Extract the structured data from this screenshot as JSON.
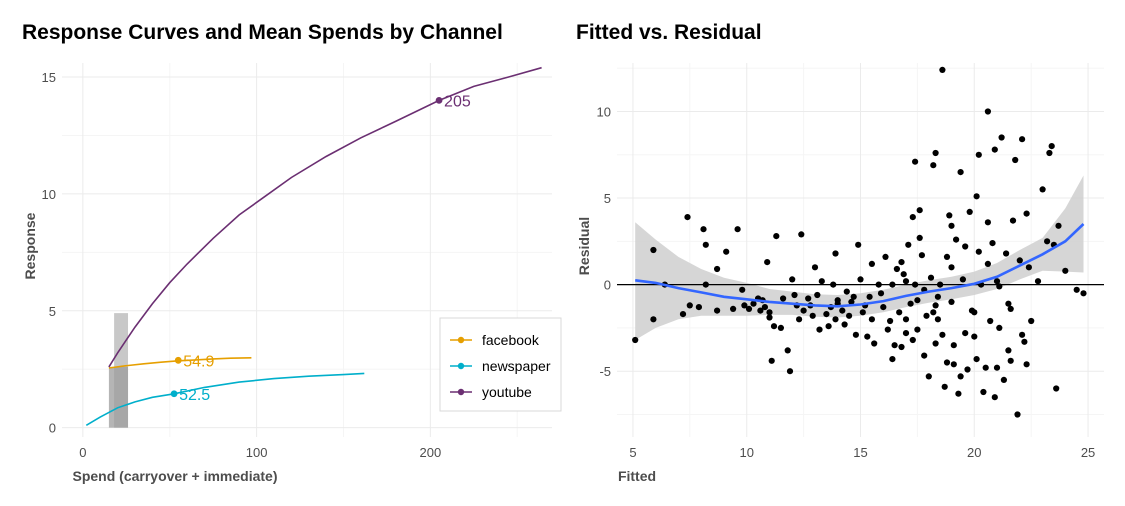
{
  "chart_data": [
    {
      "type": "line",
      "title": "Response Curves and Mean Spends by Channel",
      "xlabel": "Spend (carryover + immediate)",
      "ylabel": "Response",
      "xlim": [
        -12,
        270
      ],
      "ylim": [
        -0.4,
        15.6
      ],
      "xticks": [
        0,
        100,
        200
      ],
      "yticks": [
        0,
        5,
        10,
        15
      ],
      "grid": true,
      "legend": "right",
      "series": [
        {
          "name": "facebook",
          "color": "#E69F00",
          "curve": [
            [
              15,
              2.55
            ],
            [
              25,
              2.65
            ],
            [
              35,
              2.73
            ],
            [
              45,
              2.8
            ],
            [
              55,
              2.86
            ],
            [
              65,
              2.9
            ],
            [
              75,
              2.94
            ],
            [
              85,
              2.97
            ],
            [
              97,
              2.99
            ]
          ],
          "mean_spend": 54.9,
          "mean_response": 2.88,
          "label": "54.9",
          "band": [
            15,
            26
          ]
        },
        {
          "name": "newspaper",
          "color": "#00AFCB",
          "curve": [
            [
              2,
              0.1
            ],
            [
              10,
              0.45
            ],
            [
              20,
              0.85
            ],
            [
              30,
              1.1
            ],
            [
              40,
              1.3
            ],
            [
              52.5,
              1.45
            ],
            [
              70,
              1.72
            ],
            [
              90,
              1.95
            ],
            [
              110,
              2.1
            ],
            [
              130,
              2.2
            ],
            [
              150,
              2.27
            ],
            [
              162,
              2.32
            ]
          ],
          "mean_spend": 52.5,
          "mean_response": 1.45,
          "label": "52.5"
        },
        {
          "name": "youtube",
          "color": "#6B2F72",
          "curve": [
            [
              15,
              2.6
            ],
            [
              20,
              3.2
            ],
            [
              30,
              4.3
            ],
            [
              40,
              5.3
            ],
            [
              50,
              6.2
            ],
            [
              60,
              7.0
            ],
            [
              75,
              8.1
            ],
            [
              90,
              9.1
            ],
            [
              105,
              9.9
            ],
            [
              120,
              10.7
            ],
            [
              140,
              11.6
            ],
            [
              160,
              12.4
            ],
            [
              180,
              13.1
            ],
            [
              205,
              14.0
            ],
            [
              225,
              14.6
            ],
            [
              245,
              15.0
            ],
            [
              264,
              15.4
            ]
          ],
          "mean_spend": 205,
          "mean_response": 14.0,
          "label": "205"
        }
      ]
    },
    {
      "type": "scatter",
      "title": "Fitted vs. Residual",
      "xlabel": "Fitted",
      "ylabel": "Residual",
      "xlim": [
        4.3,
        25.7
      ],
      "ylim": [
        -8.8,
        12.8
      ],
      "xticks": [
        5,
        10,
        15,
        20,
        25
      ],
      "yticks": [
        -5,
        0,
        5,
        10
      ],
      "grid": true,
      "hline": 0,
      "smooth_color": "#3366FF",
      "smooth": [
        [
          5.1,
          0.25
        ],
        [
          6,
          0.1
        ],
        [
          7,
          -0.2
        ],
        [
          8,
          -0.45
        ],
        [
          9,
          -0.7
        ],
        [
          10,
          -0.85
        ],
        [
          11,
          -1.0
        ],
        [
          12,
          -1.1
        ],
        [
          13,
          -1.2
        ],
        [
          14,
          -1.25
        ],
        [
          15,
          -1.15
        ],
        [
          16,
          -0.95
        ],
        [
          17,
          -0.65
        ],
        [
          18,
          -0.4
        ],
        [
          19,
          -0.2
        ],
        [
          20,
          0.05
        ],
        [
          21,
          0.45
        ],
        [
          22,
          1.1
        ],
        [
          23,
          1.75
        ],
        [
          24,
          2.5
        ],
        [
          24.8,
          3.5
        ]
      ],
      "band_upper": [
        [
          5.1,
          3.6
        ],
        [
          6,
          2.6
        ],
        [
          7,
          1.6
        ],
        [
          8,
          0.9
        ],
        [
          9,
          0.4
        ],
        [
          10,
          0.1
        ],
        [
          11,
          -0.25
        ],
        [
          12,
          -0.4
        ],
        [
          13,
          -0.55
        ],
        [
          14,
          -0.6
        ],
        [
          15,
          -0.5
        ],
        [
          16,
          -0.3
        ],
        [
          17,
          0.0
        ],
        [
          18,
          0.25
        ],
        [
          19,
          0.45
        ],
        [
          20,
          0.75
        ],
        [
          21,
          1.25
        ],
        [
          22,
          2.0
        ],
        [
          23,
          2.7
        ],
        [
          24,
          4.4
        ],
        [
          24.8,
          6.3
        ]
      ],
      "band_lower": [
        [
          5.1,
          -3.2
        ],
        [
          6,
          -2.5
        ],
        [
          7,
          -2.0
        ],
        [
          8,
          -1.8
        ],
        [
          9,
          -1.8
        ],
        [
          10,
          -1.8
        ],
        [
          11,
          -1.75
        ],
        [
          12,
          -1.75
        ],
        [
          13,
          -1.85
        ],
        [
          14,
          -1.9
        ],
        [
          15,
          -1.8
        ],
        [
          16,
          -1.6
        ],
        [
          17,
          -1.3
        ],
        [
          18,
          -1.05
        ],
        [
          19,
          -0.85
        ],
        [
          20,
          -0.6
        ],
        [
          21,
          -0.25
        ],
        [
          22,
          0.3
        ],
        [
          23,
          0.8
        ],
        [
          24,
          0.75
        ],
        [
          24.8,
          0.7
        ]
      ],
      "points": [
        [
          5.1,
          -3.2
        ],
        [
          5.9,
          2.0
        ],
        [
          5.9,
          -2.0
        ],
        [
          6.4,
          0.0
        ],
        [
          7.2,
          -1.7
        ],
        [
          7.4,
          3.9
        ],
        [
          7.5,
          -1.2
        ],
        [
          7.9,
          -1.3
        ],
        [
          8.1,
          3.2
        ],
        [
          8.2,
          0.0
        ],
        [
          8.2,
          2.3
        ],
        [
          8.7,
          -1.5
        ],
        [
          8.7,
          0.9
        ],
        [
          9.1,
          1.9
        ],
        [
          9.4,
          -1.4
        ],
        [
          9.6,
          3.2
        ],
        [
          9.9,
          -1.2
        ],
        [
          10.1,
          -1.4
        ],
        [
          10.3,
          -1.1
        ],
        [
          10.5,
          -0.8
        ],
        [
          10.6,
          -1.5
        ],
        [
          10.8,
          -1.3
        ],
        [
          10.9,
          1.3
        ],
        [
          11.0,
          -1.6
        ],
        [
          11.1,
          -4.4
        ],
        [
          11.2,
          -2.4
        ],
        [
          11.3,
          2.8
        ],
        [
          11.5,
          -2.5
        ],
        [
          11.6,
          -0.8
        ],
        [
          11.8,
          -3.8
        ],
        [
          11.9,
          -5.0
        ],
        [
          12.0,
          0.3
        ],
        [
          12.1,
          -0.6
        ],
        [
          12.2,
          -1.2
        ],
        [
          12.4,
          2.9
        ],
        [
          12.5,
          -1.5
        ],
        [
          12.7,
          -0.8
        ],
        [
          12.8,
          -1.2
        ],
        [
          13.0,
          1.0
        ],
        [
          13.1,
          -0.6
        ],
        [
          13.2,
          -2.6
        ],
        [
          13.3,
          0.2
        ],
        [
          13.5,
          -1.7
        ],
        [
          13.7,
          -1.3
        ],
        [
          13.8,
          0.0
        ],
        [
          13.9,
          -2.0
        ],
        [
          14.0,
          -1.1
        ],
        [
          14.2,
          -1.5
        ],
        [
          14.3,
          -2.3
        ],
        [
          14.4,
          -0.4
        ],
        [
          14.6,
          -1.0
        ],
        [
          14.8,
          -2.9
        ],
        [
          14.9,
          2.3
        ],
        [
          15.1,
          -1.6
        ],
        [
          15.2,
          -1.2
        ],
        [
          15.3,
          -3.0
        ],
        [
          15.4,
          -0.7
        ],
        [
          15.5,
          -2.0
        ],
        [
          15.6,
          -3.4
        ],
        [
          15.8,
          0.0
        ],
        [
          16.0,
          -1.3
        ],
        [
          16.1,
          1.6
        ],
        [
          16.3,
          -2.1
        ],
        [
          16.4,
          -4.3
        ],
        [
          16.5,
          -3.5
        ],
        [
          16.6,
          0.9
        ],
        [
          16.8,
          1.3
        ],
        [
          16.8,
          -3.6
        ],
        [
          17.0,
          -2.0
        ],
        [
          17.0,
          0.2
        ],
        [
          17.1,
          2.3
        ],
        [
          17.2,
          -1.1
        ],
        [
          17.3,
          -3.2
        ],
        [
          17.3,
          3.9
        ],
        [
          17.4,
          0.0
        ],
        [
          17.5,
          -2.6
        ],
        [
          17.6,
          2.7
        ],
        [
          17.6,
          4.3
        ],
        [
          17.7,
          1.7
        ],
        [
          17.8,
          -0.3
        ],
        [
          17.9,
          -1.8
        ],
        [
          18.0,
          -5.3
        ],
        [
          18.1,
          0.4
        ],
        [
          18.2,
          6.9
        ],
        [
          18.3,
          -3.4
        ],
        [
          18.3,
          -1.2
        ],
        [
          18.4,
          -2.0
        ],
        [
          18.5,
          0.0
        ],
        [
          18.6,
          -2.9
        ],
        [
          18.7,
          -5.9
        ],
        [
          18.8,
          1.6
        ],
        [
          18.9,
          4.0
        ],
        [
          19.0,
          -1.0
        ],
        [
          19.0,
          3.4
        ],
        [
          19.1,
          -4.6
        ],
        [
          19.2,
          2.6
        ],
        [
          19.3,
          -6.3
        ],
        [
          19.4,
          -5.3
        ],
        [
          19.5,
          0.3
        ],
        [
          19.6,
          2.2
        ],
        [
          19.7,
          -4.9
        ],
        [
          19.8,
          4.2
        ],
        [
          19.9,
          -1.5
        ],
        [
          20.0,
          -3.0
        ],
        [
          20.1,
          -4.3
        ],
        [
          20.2,
          7.5
        ],
        [
          20.3,
          0.0
        ],
        [
          20.4,
          -6.2
        ],
        [
          20.5,
          -4.8
        ],
        [
          20.6,
          3.6
        ],
        [
          20.7,
          -2.1
        ],
        [
          20.8,
          2.4
        ],
        [
          20.9,
          -6.5
        ],
        [
          21.0,
          0.2
        ],
        [
          21.1,
          -2.5
        ],
        [
          21.2,
          8.5
        ],
        [
          21.3,
          -5.5
        ],
        [
          21.4,
          1.8
        ],
        [
          21.5,
          -1.1
        ],
        [
          21.6,
          -4.4
        ],
        [
          21.7,
          3.7
        ],
        [
          21.8,
          7.2
        ],
        [
          21.9,
          -7.5
        ],
        [
          22.0,
          1.4
        ],
        [
          22.1,
          8.4
        ],
        [
          22.2,
          -3.3
        ],
        [
          22.3,
          4.1
        ],
        [
          22.4,
          1.0
        ],
        [
          22.5,
          -2.1
        ],
        [
          23.0,
          5.5
        ],
        [
          23.2,
          2.5
        ],
        [
          23.3,
          7.6
        ],
        [
          23.4,
          8.0
        ],
        [
          23.5,
          2.3
        ],
        [
          23.6,
          -6.0
        ],
        [
          23.7,
          3.4
        ],
        [
          24.0,
          0.8
        ],
        [
          24.5,
          -0.3
        ],
        [
          24.8,
          -0.5
        ],
        [
          12.9,
          -1.8
        ],
        [
          14.7,
          -0.7
        ],
        [
          16.7,
          -1.6
        ],
        [
          18.8,
          -4.5
        ],
        [
          19.6,
          -2.8
        ],
        [
          20.0,
          -1.6
        ],
        [
          21.0,
          -4.8
        ],
        [
          22.3,
          -4.6
        ],
        [
          17.5,
          -0.9
        ],
        [
          16.2,
          -2.6
        ],
        [
          11.0,
          -1.9
        ],
        [
          9.8,
          -0.3
        ],
        [
          13.6,
          -2.4
        ],
        [
          15.0,
          0.3
        ],
        [
          19.0,
          1.0
        ],
        [
          20.6,
          1.2
        ],
        [
          21.5,
          -3.8
        ],
        [
          18.2,
          -1.6
        ],
        [
          16.9,
          0.6
        ],
        [
          14.5,
          -1.8
        ],
        [
          12.3,
          -2.0
        ],
        [
          10.7,
          -0.9
        ],
        [
          17.4,
          7.1
        ],
        [
          20.1,
          5.1
        ],
        [
          18.4,
          -0.7
        ],
        [
          20.9,
          7.8
        ],
        [
          19.1,
          -3.5
        ],
        [
          17.8,
          -4.1
        ],
        [
          22.1,
          -2.9
        ],
        [
          16.4,
          0.0
        ],
        [
          15.9,
          -0.5
        ],
        [
          13.9,
          1.8
        ],
        [
          18.6,
          12.4
        ],
        [
          20.6,
          10.0
        ],
        [
          18.3,
          7.6
        ],
        [
          21.6,
          -1.4
        ],
        [
          22.8,
          0.2
        ],
        [
          19.4,
          6.5
        ],
        [
          20.2,
          1.9
        ],
        [
          21.1,
          -0.1
        ],
        [
          17.0,
          -2.8
        ],
        [
          15.5,
          1.2
        ],
        [
          14.0,
          -0.9
        ]
      ]
    }
  ]
}
